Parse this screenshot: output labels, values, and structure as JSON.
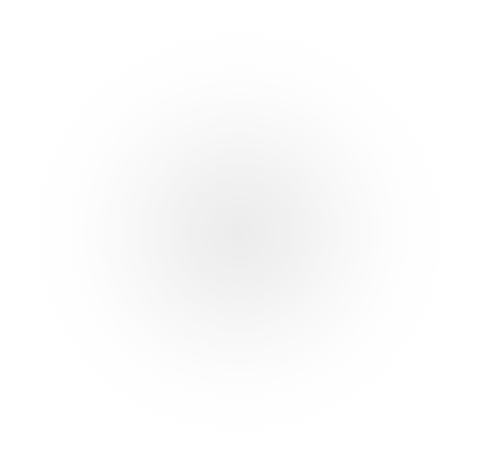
{
  "theme": {
    "background_color": "#ffffff",
    "glow_color": "#ececec"
  }
}
